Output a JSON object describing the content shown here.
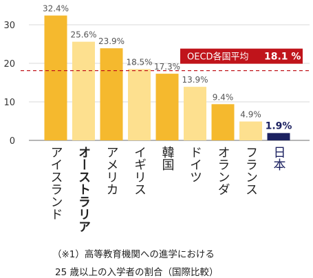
{
  "chart_data": {
    "type": "bar",
    "categories": [
      "アイスランド",
      "オーストラリア",
      "アメリカ",
      "イギリス",
      "韓国",
      "ドイツ",
      "オランダ",
      "フランス",
      "日本"
    ],
    "values": [
      32.4,
      25.6,
      23.9,
      18.5,
      17.3,
      13.9,
      9.4,
      4.9,
      1.9
    ],
    "value_labels": [
      "32.4%",
      "25.6%",
      "23.9%",
      "18.5%",
      "17.3%",
      "13.9%",
      "9.4%",
      "4.9%",
      "1.9%"
    ],
    "bar_colors": [
      "#f5b92e",
      "#fde08f",
      "#f5b92e",
      "#fde08f",
      "#f5b92e",
      "#fde08f",
      "#f5b92e",
      "#fde08f",
      "#1b2160"
    ],
    "highlight_index": 8,
    "highlight_color": "#1b2160",
    "bold_category_indices": [
      1
    ],
    "y_ticks": [
      0,
      10,
      20,
      30
    ],
    "ylim": [
      0,
      34
    ],
    "average": {
      "value": 18.1,
      "label": "OECD各国平均",
      "value_label": "18.1 %",
      "line_color": "#c0141b",
      "box_color": "#c0141b"
    }
  },
  "footnote": {
    "line1": "（※1）高等教育機関への進学における",
    "line2": "25 歳以上の入学者の割合（国際比較）"
  }
}
